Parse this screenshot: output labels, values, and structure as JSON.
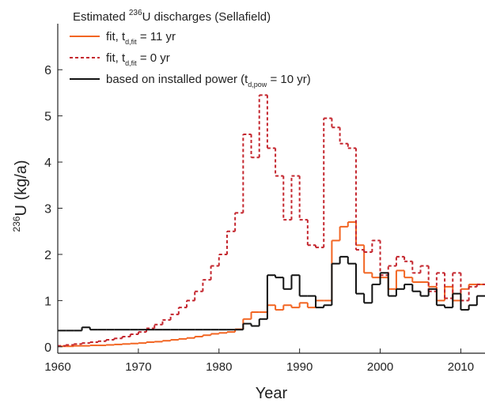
{
  "chart_data": {
    "type": "step",
    "legend_title": {
      "before": "Estimated ",
      "sup": "236",
      "after": "U discharges (Sellafield)"
    },
    "xlabel": "Year",
    "ylabel": {
      "sup": "236",
      "text": "U (kg/a)"
    },
    "x": [
      1960,
      1961,
      1962,
      1963,
      1964,
      1965,
      1966,
      1967,
      1968,
      1969,
      1970,
      1971,
      1972,
      1973,
      1974,
      1975,
      1976,
      1977,
      1978,
      1979,
      1980,
      1981,
      1982,
      1983,
      1984,
      1985,
      1986,
      1987,
      1988,
      1989,
      1990,
      1991,
      1992,
      1993,
      1994,
      1995,
      1996,
      1997,
      1998,
      1999,
      2000,
      2001,
      2002,
      2003,
      2004,
      2005,
      2006,
      2007,
      2008,
      2009,
      2010,
      2011,
      2012
    ],
    "series": [
      {
        "label": {
          "text": "fit, t",
          "sub": "d,fit",
          "tail": " = 11 yr"
        },
        "color": "#f26522",
        "dash": false,
        "values": [
          0.01,
          0.01,
          0.02,
          0.02,
          0.03,
          0.03,
          0.04,
          0.05,
          0.06,
          0.07,
          0.08,
          0.1,
          0.11,
          0.13,
          0.15,
          0.17,
          0.19,
          0.22,
          0.25,
          0.28,
          0.3,
          0.32,
          0.38,
          0.6,
          0.75,
          0.75,
          0.9,
          0.8,
          0.9,
          0.85,
          0.95,
          0.85,
          1.0,
          1.0,
          2.3,
          2.6,
          2.7,
          2.2,
          1.6,
          1.5,
          1.5,
          1.25,
          1.65,
          1.5,
          1.4,
          1.4,
          1.3,
          1.0,
          1.3,
          1.0,
          1.25,
          1.35,
          1.35
        ]
      },
      {
        "label": {
          "text": "fit, t",
          "sub": "d,fit",
          "tail": " = 0 yr"
        },
        "color": "#c4262e",
        "dash": true,
        "values": [
          0.02,
          0.04,
          0.06,
          0.08,
          0.1,
          0.12,
          0.15,
          0.18,
          0.22,
          0.27,
          0.32,
          0.4,
          0.48,
          0.58,
          0.7,
          0.85,
          1.0,
          1.2,
          1.45,
          1.75,
          2.0,
          2.5,
          2.9,
          4.6,
          4.1,
          5.45,
          4.3,
          3.7,
          2.75,
          3.7,
          2.75,
          2.2,
          2.15,
          4.95,
          4.75,
          4.4,
          4.3,
          2.1,
          2.05,
          2.3,
          1.55,
          1.75,
          1.95,
          1.85,
          1.6,
          1.75,
          1.2,
          1.6,
          1.05,
          1.6,
          1.0,
          1.3,
          1.35
        ]
      },
      {
        "label": {
          "text": "based on installed power (t",
          "sub": "d,pow",
          "tail": " = 10 yr)"
        },
        "color": "#111111",
        "dash": false,
        "values": [
          0.35,
          0.35,
          0.35,
          0.42,
          0.37,
          0.37,
          0.37,
          0.37,
          0.37,
          0.37,
          0.37,
          0.37,
          0.37,
          0.37,
          0.37,
          0.37,
          0.37,
          0.37,
          0.37,
          0.37,
          0.37,
          0.37,
          0.37,
          0.5,
          0.45,
          0.6,
          1.55,
          1.5,
          1.25,
          1.55,
          1.1,
          1.1,
          0.85,
          0.9,
          1.8,
          1.95,
          1.8,
          1.15,
          0.95,
          1.35,
          1.6,
          1.1,
          1.25,
          1.35,
          1.2,
          1.1,
          1.25,
          0.9,
          0.85,
          1.15,
          0.8,
          0.9,
          1.1
        ]
      }
    ],
    "xlim": [
      1960,
      2013
    ],
    "ylim": [
      -0.14,
      6.5
    ],
    "xticks": [
      1960,
      1970,
      1980,
      1990,
      2000,
      2010
    ],
    "yticks": [
      0,
      1,
      2,
      3,
      4,
      5,
      6
    ]
  }
}
